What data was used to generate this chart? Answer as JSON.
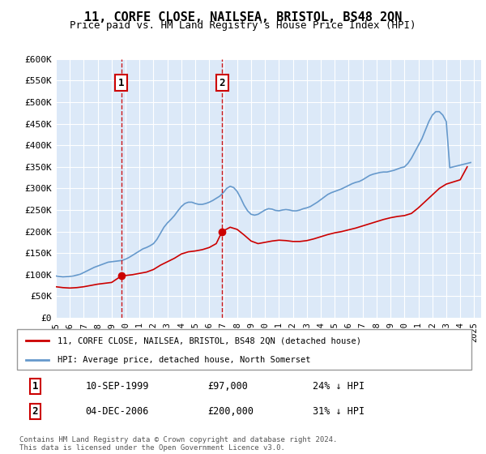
{
  "title": "11, CORFE CLOSE, NAILSEA, BRISTOL, BS48 2QN",
  "subtitle": "Price paid vs. HM Land Registry's House Price Index (HPI)",
  "ylabel": "",
  "ylim": [
    0,
    600000
  ],
  "yticks": [
    0,
    50000,
    100000,
    150000,
    200000,
    250000,
    300000,
    350000,
    400000,
    450000,
    500000,
    550000,
    600000
  ],
  "ytick_labels": [
    "£0",
    "£50K",
    "£100K",
    "£150K",
    "£200K",
    "£250K",
    "£300K",
    "£350K",
    "£400K",
    "£450K",
    "£500K",
    "£550K",
    "£600K"
  ],
  "xlim_start": 1995.0,
  "xlim_end": 2025.5,
  "background_color": "#dce9f8",
  "plot_bg_color": "#dce9f8",
  "grid_color": "#ffffff",
  "red_color": "#cc0000",
  "blue_color": "#6699cc",
  "transaction1": {
    "date": "10-SEP-1999",
    "price": 97000,
    "pct": "24%",
    "year": 1999.69
  },
  "transaction2": {
    "date": "04-DEC-2006",
    "price": 200000,
    "pct": "31%",
    "year": 2006.92
  },
  "legend_line1": "11, CORFE CLOSE, NAILSEA, BRISTOL, BS48 2QN (detached house)",
  "legend_line2": "HPI: Average price, detached house, North Somerset",
  "footnote": "Contains HM Land Registry data © Crown copyright and database right 2024.\nThis data is licensed under the Open Government Licence v3.0.",
  "hpi_years": [
    1995.0,
    1995.25,
    1995.5,
    1995.75,
    1996.0,
    1996.25,
    1996.5,
    1996.75,
    1997.0,
    1997.25,
    1997.5,
    1997.75,
    1998.0,
    1998.25,
    1998.5,
    1998.75,
    1999.0,
    1999.25,
    1999.5,
    1999.75,
    2000.0,
    2000.25,
    2000.5,
    2000.75,
    2001.0,
    2001.25,
    2001.5,
    2001.75,
    2002.0,
    2002.25,
    2002.5,
    2002.75,
    2003.0,
    2003.25,
    2003.5,
    2003.75,
    2004.0,
    2004.25,
    2004.5,
    2004.75,
    2005.0,
    2005.25,
    2005.5,
    2005.75,
    2006.0,
    2006.25,
    2006.5,
    2006.75,
    2007.0,
    2007.25,
    2007.5,
    2007.75,
    2008.0,
    2008.25,
    2008.5,
    2008.75,
    2009.0,
    2009.25,
    2009.5,
    2009.75,
    2010.0,
    2010.25,
    2010.5,
    2010.75,
    2011.0,
    2011.25,
    2011.5,
    2011.75,
    2012.0,
    2012.25,
    2012.5,
    2012.75,
    2013.0,
    2013.25,
    2013.5,
    2013.75,
    2014.0,
    2014.25,
    2014.5,
    2014.75,
    2015.0,
    2015.25,
    2015.5,
    2015.75,
    2016.0,
    2016.25,
    2016.5,
    2016.75,
    2017.0,
    2017.25,
    2017.5,
    2017.75,
    2018.0,
    2018.25,
    2018.5,
    2018.75,
    2019.0,
    2019.25,
    2019.5,
    2019.75,
    2020.0,
    2020.25,
    2020.5,
    2020.75,
    2021.0,
    2021.25,
    2021.5,
    2021.75,
    2022.0,
    2022.25,
    2022.5,
    2022.75,
    2023.0,
    2023.25,
    2023.5,
    2023.75,
    2024.0,
    2024.25,
    2024.5,
    2024.75
  ],
  "hpi_values": [
    97000,
    96000,
    95000,
    95500,
    96000,
    97000,
    99000,
    101000,
    105000,
    109000,
    113000,
    117000,
    120000,
    123000,
    126000,
    129000,
    130000,
    131000,
    132000,
    133000,
    136000,
    140000,
    145000,
    150000,
    155000,
    160000,
    163000,
    167000,
    172000,
    182000,
    196000,
    210000,
    220000,
    228000,
    237000,
    248000,
    258000,
    265000,
    268000,
    268000,
    265000,
    263000,
    263000,
    265000,
    268000,
    272000,
    277000,
    282000,
    290000,
    300000,
    305000,
    302000,
    293000,
    278000,
    261000,
    248000,
    240000,
    238000,
    240000,
    245000,
    250000,
    253000,
    252000,
    249000,
    248000,
    250000,
    251000,
    250000,
    248000,
    248000,
    250000,
    253000,
    255000,
    258000,
    263000,
    268000,
    274000,
    280000,
    286000,
    290000,
    293000,
    296000,
    299000,
    303000,
    307000,
    311000,
    314000,
    316000,
    320000,
    325000,
    330000,
    333000,
    335000,
    337000,
    338000,
    338000,
    340000,
    342000,
    345000,
    348000,
    350000,
    358000,
    370000,
    385000,
    400000,
    415000,
    435000,
    455000,
    470000,
    478000,
    478000,
    470000,
    455000,
    348000,
    350000,
    352000,
    354000,
    356000,
    358000,
    360000
  ],
  "red_years": [
    1995.0,
    1995.5,
    1996.0,
    1996.5,
    1997.0,
    1997.5,
    1998.0,
    1998.5,
    1999.0,
    1999.69,
    2000.5,
    2001.0,
    2001.5,
    2002.0,
    2002.5,
    2003.0,
    2003.5,
    2004.0,
    2004.5,
    2005.0,
    2005.5,
    2006.0,
    2006.5,
    2006.92,
    2007.5,
    2008.0,
    2008.5,
    2009.0,
    2009.5,
    2010.0,
    2010.5,
    2011.0,
    2011.5,
    2012.0,
    2012.5,
    2013.0,
    2013.5,
    2014.0,
    2014.5,
    2015.0,
    2015.5,
    2016.0,
    2016.5,
    2017.0,
    2017.5,
    2018.0,
    2018.5,
    2019.0,
    2019.5,
    2020.0,
    2020.5,
    2021.0,
    2021.5,
    2022.0,
    2022.5,
    2023.0,
    2023.5,
    2024.0,
    2024.5
  ],
  "red_values": [
    72000,
    70000,
    69000,
    70000,
    72000,
    75000,
    78000,
    80000,
    82000,
    97000,
    100000,
    103000,
    106000,
    112000,
    122000,
    130000,
    138000,
    148000,
    153000,
    155000,
    158000,
    163000,
    172000,
    200000,
    210000,
    205000,
    192000,
    178000,
    172000,
    175000,
    178000,
    180000,
    179000,
    177000,
    177000,
    179000,
    183000,
    188000,
    193000,
    197000,
    200000,
    204000,
    208000,
    213000,
    218000,
    223000,
    228000,
    232000,
    235000,
    237000,
    242000,
    255000,
    270000,
    285000,
    300000,
    310000,
    315000,
    320000,
    350000
  ]
}
